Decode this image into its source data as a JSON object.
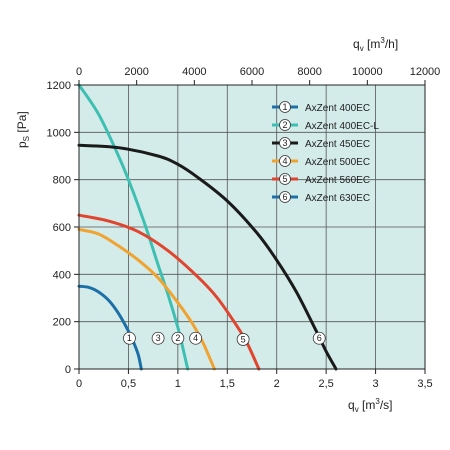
{
  "chart_data": {
    "type": "line",
    "xlabel": "q",
    "xlabel_sub": "v",
    "xlabel_unit": "[m",
    "xlabel_unit_sup": "3",
    "xlabel_unit_tail": "/s]",
    "x2label": "q",
    "x2label_sub": "v",
    "x2label_unit": "[m",
    "x2label_unit_sup": "3",
    "x2label_unit_tail": "/h]",
    "ylabel": "p",
    "ylabel_sub": "S",
    "ylabel_unit": "[Pa]",
    "xlim": [
      0,
      3.5
    ],
    "x2lim": [
      0,
      12000
    ],
    "ylim": [
      0,
      1200
    ],
    "x_ticks": [
      "0",
      "0,5",
      "1",
      "1,5",
      "2",
      "2,5",
      "3",
      "3,5"
    ],
    "x2_ticks": [
      "0",
      "2000",
      "4000",
      "6000",
      "8000",
      "10000",
      "12000"
    ],
    "y_ticks": [
      "0",
      "200",
      "400",
      "600",
      "800",
      "1000",
      "1200"
    ],
    "grid": true,
    "legend_position": "top-right",
    "background_color": "#d4ece9",
    "series": [
      {
        "marker": "1",
        "name": "AxZent 400EC",
        "color": "#1d6fa8",
        "x": [
          0,
          0.1,
          0.2,
          0.3,
          0.4,
          0.5,
          0.55,
          0.6,
          0.63
        ],
        "y": [
          350,
          345,
          325,
          290,
          235,
          160,
          115,
          60,
          0
        ]
      },
      {
        "marker": "2",
        "name": "AxZent 400EC-L",
        "color": "#3dbfb4",
        "x": [
          0,
          0.2,
          0.4,
          0.5,
          0.6,
          0.7,
          0.8,
          0.9,
          1.0,
          1.05,
          1.1
        ],
        "y": [
          1200,
          1075,
          900,
          800,
          690,
          570,
          440,
          315,
          175,
          90,
          0
        ]
      },
      {
        "marker": "3",
        "name": "AxZent 450EC",
        "color": "#1a1a1a",
        "x": [
          0,
          0.4,
          0.8,
          1.0,
          1.2,
          1.5,
          1.8,
          2.0,
          2.2,
          2.4,
          2.5,
          2.6
        ],
        "y": [
          945,
          935,
          900,
          865,
          810,
          710,
          575,
          460,
          325,
          160,
          75,
          0
        ]
      },
      {
        "marker": "4",
        "name": "AxZent 500EC",
        "color": "#f0a330",
        "x": [
          0,
          0.2,
          0.4,
          0.6,
          0.8,
          1.0,
          1.15,
          1.25,
          1.37
        ],
        "y": [
          590,
          570,
          520,
          460,
          385,
          280,
          190,
          115,
          0
        ]
      },
      {
        "marker": "5",
        "name": "AxZent 560EC",
        "color": "#e0452f",
        "x": [
          0,
          0.3,
          0.6,
          0.9,
          1.2,
          1.4,
          1.6,
          1.7,
          1.82
        ],
        "y": [
          650,
          625,
          580,
          500,
          390,
          300,
          180,
          110,
          0
        ]
      },
      {
        "marker": "6",
        "name": "AxZent 630EC",
        "color": "#1d6fa8",
        "x": [],
        "y": []
      }
    ],
    "markers": [
      {
        "label": "1",
        "x": 0.51,
        "y": 130
      },
      {
        "label": "3",
        "x": 0.8,
        "y": 130
      },
      {
        "label": "2",
        "x": 1.0,
        "y": 130
      },
      {
        "label": "4",
        "x": 1.18,
        "y": 130
      },
      {
        "label": "5",
        "x": 1.66,
        "y": 125
      },
      {
        "label": "6",
        "x": 2.43,
        "y": 130
      }
    ]
  }
}
